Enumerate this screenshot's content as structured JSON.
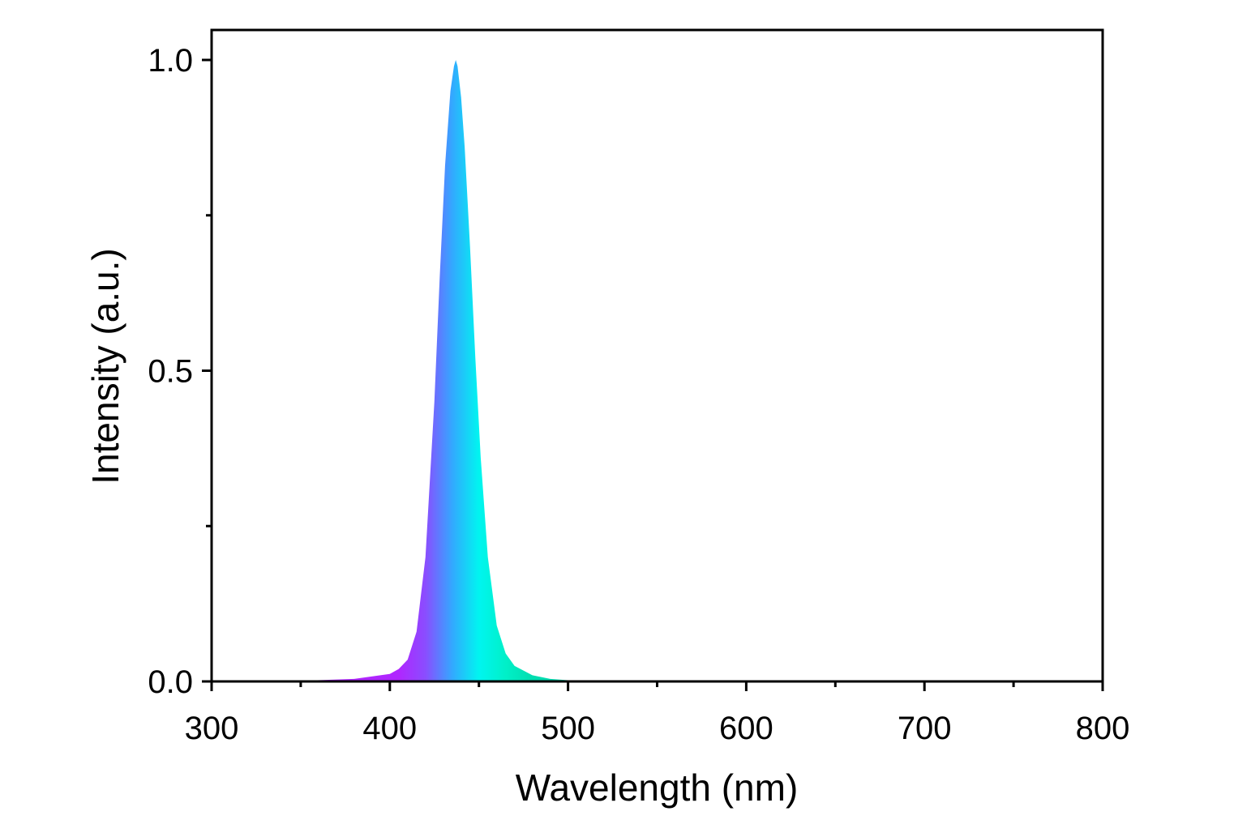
{
  "chart_data": {
    "type": "area",
    "title": "",
    "xlabel": "Wavelength (nm)",
    "ylabel": "Intensity (a.u.)",
    "xlim": [
      300,
      800
    ],
    "ylim": [
      0,
      1.05
    ],
    "x_ticks": [
      300,
      400,
      500,
      600,
      700,
      800
    ],
    "x_tick_labels": [
      "300",
      "400",
      "500",
      "600",
      "700",
      "800"
    ],
    "x_minor_ticks": [
      350,
      450,
      550,
      650,
      750
    ],
    "y_ticks": [
      0,
      0.5,
      1.0
    ],
    "y_tick_labels": [
      "0.0",
      "0.5",
      "1.0"
    ],
    "y_minor_ticks": [
      0.25,
      0.75
    ],
    "grid": false,
    "legend": "none",
    "series": [
      {
        "x": [
          300,
          350,
          380,
          400,
          405,
          410,
          415,
          420,
          425,
          428,
          431,
          434,
          436,
          437,
          438,
          440,
          442,
          445,
          448,
          451,
          455,
          460,
          465,
          470,
          480,
          490,
          500,
          550,
          600,
          700,
          800
        ],
        "y": [
          0,
          0.001,
          0.004,
          0.012,
          0.02,
          0.035,
          0.08,
          0.2,
          0.45,
          0.65,
          0.83,
          0.95,
          0.99,
          1.0,
          0.99,
          0.94,
          0.86,
          0.7,
          0.52,
          0.36,
          0.2,
          0.09,
          0.045,
          0.025,
          0.01,
          0.004,
          0.002,
          0.0005,
          0,
          0,
          0
        ],
        "fill_gradient": [
          "#b026ff",
          "#8a4dff",
          "#33a8ff",
          "#00f5f0",
          "#00f0c8",
          "#00ddb0"
        ]
      }
    ]
  }
}
